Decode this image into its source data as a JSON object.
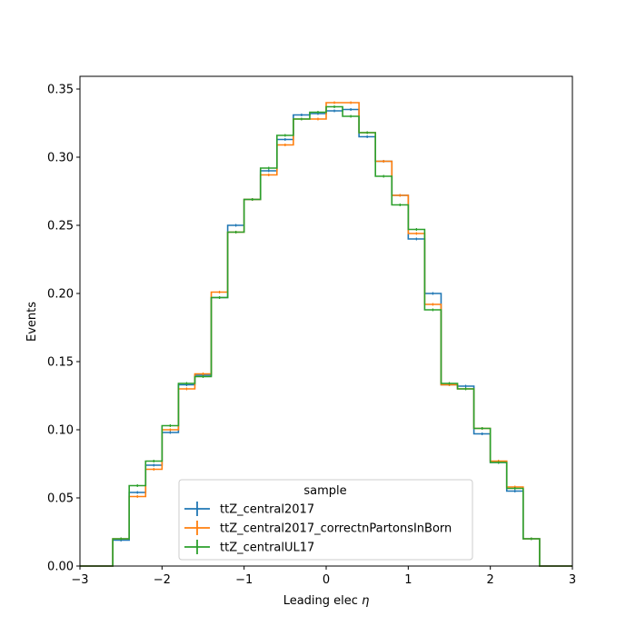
{
  "chart_data": {
    "type": "line",
    "xlabel": "Leading elec",
    "xlabel_symbol": "η",
    "ylabel": "Events",
    "xlim": [
      -3,
      3
    ],
    "ylim": [
      0,
      0.36
    ],
    "x_ticks": [
      -3,
      -2,
      -1,
      0,
      1,
      2,
      3
    ],
    "x_tick_labels": [
      "−3",
      "−2",
      "−1",
      "0",
      "1",
      "2",
      "3"
    ],
    "y_ticks": [
      0,
      0.05,
      0.1,
      0.15,
      0.2,
      0.25,
      0.3,
      0.35
    ],
    "y_tick_labels": [
      "0.00",
      "0.05",
      "0.10",
      "0.15",
      "0.20",
      "0.25",
      "0.30",
      "0.35"
    ],
    "bin_edges": [
      -2.6,
      -2.4,
      -2.2,
      -2.0,
      -1.8,
      -1.6,
      -1.4,
      -1.2,
      -1.0,
      -0.8,
      -0.6,
      -0.4,
      -0.2,
      0.0,
      0.2,
      0.4,
      0.6,
      0.8,
      1.0,
      1.2,
      1.4,
      1.6,
      1.8,
      2.0,
      2.2,
      2.4,
      2.6
    ],
    "legend": {
      "title": "sample",
      "placement": "lower-center"
    },
    "series": [
      {
        "name": "ttZ_central2017",
        "color": "#1f77b4",
        "values": [
          0.019,
          0.054,
          0.074,
          0.098,
          0.133,
          0.14,
          0.197,
          0.25,
          0.269,
          0.29,
          0.313,
          0.331,
          0.332,
          0.334,
          0.335,
          0.315,
          0.297,
          0.272,
          0.24,
          0.2,
          0.133,
          0.132,
          0.097,
          0.076,
          0.055,
          0.02
        ]
      },
      {
        "name": "ttZ_central2017_correctnPartonsInBorn",
        "color": "#ff7f0e",
        "values": [
          0.02,
          0.051,
          0.071,
          0.1,
          0.13,
          0.141,
          0.201,
          0.245,
          0.269,
          0.287,
          0.309,
          0.328,
          0.328,
          0.34,
          0.34,
          0.318,
          0.297,
          0.272,
          0.244,
          0.192,
          0.133,
          0.13,
          0.101,
          0.077,
          0.058,
          0.02
        ]
      },
      {
        "name": "ttZ_centralUL17",
        "color": "#2ca02c",
        "values": [
          0.02,
          0.059,
          0.077,
          0.103,
          0.134,
          0.139,
          0.197,
          0.245,
          0.269,
          0.292,
          0.316,
          0.328,
          0.333,
          0.337,
          0.33,
          0.318,
          0.286,
          0.265,
          0.247,
          0.188,
          0.134,
          0.13,
          0.101,
          0.076,
          0.057,
          0.02
        ]
      }
    ]
  }
}
